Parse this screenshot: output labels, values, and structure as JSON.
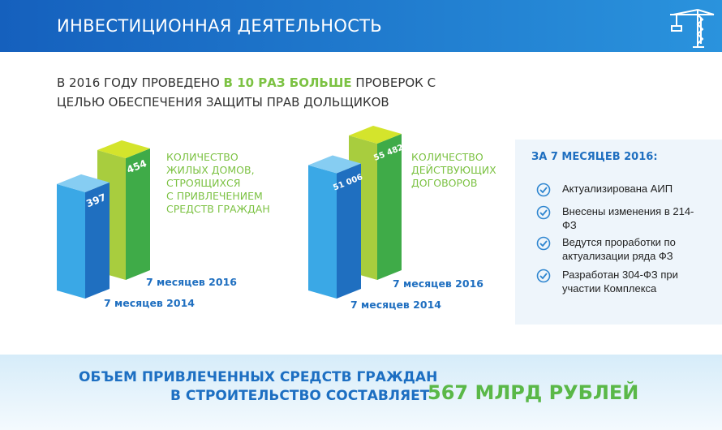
{
  "header": {
    "title": "ИНВЕСТИЦИОННАЯ ДЕЯТЕЛЬНОСТЬ"
  },
  "headline": {
    "before": "В 2016 ГОДУ ПРОВЕДЕНО",
    "highlight": "В 10 РАЗ БОЛЬШЕ",
    "after": "ПРОВЕРОК С ЦЕЛЬЮ ОБЕСПЕЧЕНИЯ ЗАЩИТЫ ПРАВ ДОЛЬЩИКОВ"
  },
  "charts": [
    {
      "label": [
        "КОЛИЧЕСТВО",
        "ЖИЛЫХ ДОМОВ,",
        "СТРОЯЩИХСЯ",
        "С ПРИВЛЕЧЕНИЕМ",
        "СРЕДСТВ ГРАЖДАН"
      ],
      "categories": [
        "7 месяцев 2014",
        "7 месяцев 2016"
      ],
      "values": [
        397,
        454
      ]
    },
    {
      "label": [
        "КОЛИЧЕСТВО",
        "ДЕЙСТВУЮЩИХ",
        "ДОГОВОРОВ"
      ],
      "categories": [
        "7 месяцев 2014",
        "7 месяцев 2016"
      ],
      "values": [
        51006,
        55482
      ],
      "value_labels": [
        "51 006",
        "55 482"
      ]
    }
  ],
  "panel": {
    "title": "ЗА 7 МЕСЯЦЕВ 2016:",
    "items": [
      "Актуализирована АИП",
      "Внесены изменения в 214-ФЗ",
      "Ведутся проработки по актуализации ряда ФЗ",
      "Разработан 304-ФЗ при участии Комплекса"
    ]
  },
  "footer": {
    "line1": "ОБЪЕМ ПРИВЛЕЧЕННЫХ СРЕДСТВ ГРАЖДАН",
    "line2": "В СТРОИТЕЛЬСТВО СОСТАВЛЯЕТ",
    "amount": "567 МЛРД РУБЛЕЙ"
  }
}
